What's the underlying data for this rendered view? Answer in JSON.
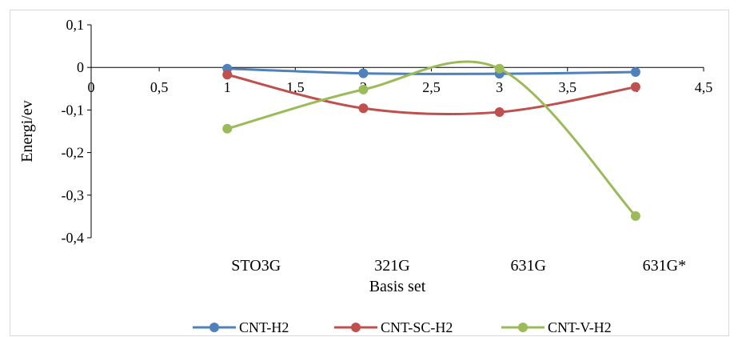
{
  "chart_data": {
    "type": "line",
    "title": "",
    "xlabel": "Basis set",
    "ylabel": "Energi/ev",
    "xlim": [
      0,
      4.5
    ],
    "ylim": [
      -0.4,
      0.1
    ],
    "x_ticks": [
      "0",
      "0,5",
      "1",
      "1,5",
      "2",
      "2,5",
      "3",
      "3,5",
      "4",
      "4,5"
    ],
    "y_ticks": [
      "0,1",
      "0",
      "-0,1",
      "-0,2",
      "-0,3",
      "-0,4"
    ],
    "category_labels": [
      "STO3G",
      "321G",
      "631G",
      "631G*"
    ],
    "x": [
      1,
      2,
      3,
      4
    ],
    "smooth": true,
    "grid": false,
    "legend_position": "bottom",
    "series": [
      {
        "name": "CNT-H2",
        "color": "#4f81bd",
        "values": [
          -0.003,
          -0.014,
          -0.015,
          -0.011
        ]
      },
      {
        "name": "CNT-SC-H2",
        "color": "#c0504d",
        "values": [
          -0.017,
          -0.096,
          -0.105,
          -0.046
        ]
      },
      {
        "name": "CNT-V-H2",
        "color": "#9bbb59",
        "values": [
          -0.144,
          -0.052,
          -0.003,
          -0.349
        ]
      }
    ]
  }
}
